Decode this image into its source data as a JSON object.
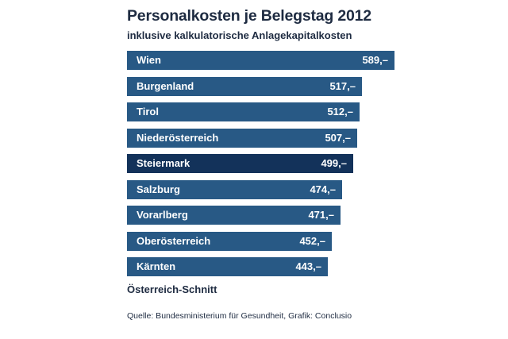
{
  "chart_data": {
    "type": "bar",
    "orientation": "horizontal",
    "title": "Personalkosten je Belegstag 2012",
    "subtitle": "inklusive kalkulatorische Anlagekapitalkosten",
    "categories": [
      "Wien",
      "Burgenland",
      "Tirol",
      "Niederösterreich",
      "Steiermark",
      "Salzburg",
      "Vorarlberg",
      "Oberösterreich",
      "Kärnten"
    ],
    "values": [
      589,
      517,
      512,
      507,
      499,
      474,
      471,
      452,
      443
    ],
    "value_labels": [
      "589,–",
      "517,–",
      "512,–",
      "507,–",
      "499,–",
      "474,–",
      "471,–",
      "452,–",
      "443,–"
    ],
    "highlighted": "Steiermark",
    "colors": {
      "bar": "#285985",
      "highlight": "#13325a",
      "text": "#1e2b41"
    },
    "footer_label": "Österreich-Schnitt",
    "source": "Quelle: Bundesministerium für Gesundheit, Grafik: Conclusio"
  }
}
